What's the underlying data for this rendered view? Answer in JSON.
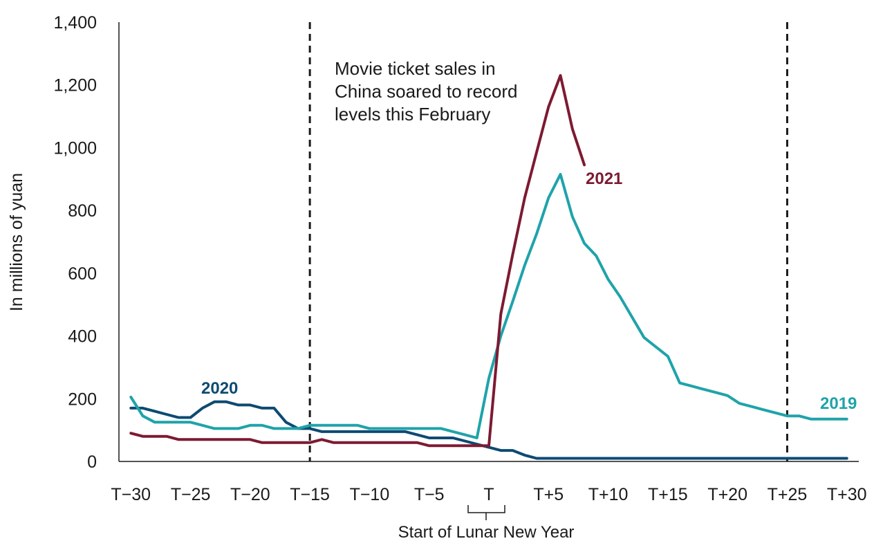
{
  "chart_data": {
    "type": "line",
    "ylabel": "In millions of yuan",
    "ylim": [
      0,
      1400
    ],
    "yticks": [
      0,
      200,
      400,
      600,
      800,
      1000,
      1200,
      1400
    ],
    "ytick_labels": [
      "0",
      "200",
      "400",
      "600",
      "800",
      "1,000",
      "1,200",
      "1,400"
    ],
    "xlim": [
      -31,
      31
    ],
    "xticks": [
      -30,
      -25,
      -20,
      -15,
      -10,
      -5,
      0,
      5,
      10,
      15,
      20,
      25,
      30
    ],
    "xtick_labels": [
      "T−30",
      "T−25",
      "T−20",
      "T−15",
      "T−10",
      "T−5",
      "T",
      "T+5",
      "T+10",
      "T+15",
      "T+20",
      "T+25",
      "T+30"
    ],
    "x_sublabel": "Start of Lunar New Year",
    "annotation": "Movie ticket sales in China soared to record levels this February",
    "vlines": [
      -15,
      25
    ],
    "grid": false,
    "legend": "direct labels",
    "series": [
      {
        "name": "2020",
        "color": "#0d4a72",
        "x": [
          -30,
          -29,
          -28,
          -27,
          -26,
          -25,
          -24,
          -23,
          -22,
          -21,
          -20,
          -19,
          -18,
          -17,
          -16,
          -15,
          -14,
          -13,
          -12,
          -11,
          -10,
          -9,
          -8,
          -7,
          -6,
          -5,
          -4,
          -3,
          -2,
          -1,
          0,
          1,
          2,
          3,
          4,
          5,
          6,
          7,
          8,
          9,
          10,
          11,
          12,
          13,
          14,
          15,
          16,
          17,
          18,
          19,
          20,
          21,
          22,
          23,
          24,
          25,
          26,
          27,
          28,
          29,
          30
        ],
        "values": [
          170,
          170,
          160,
          150,
          140,
          140,
          170,
          190,
          190,
          180,
          180,
          170,
          170,
          125,
          105,
          105,
          95,
          95,
          95,
          95,
          95,
          95,
          95,
          95,
          85,
          75,
          75,
          75,
          65,
          55,
          45,
          35,
          35,
          20,
          10,
          10,
          10,
          10,
          10,
          10,
          10,
          10,
          10,
          10,
          10,
          10,
          10,
          10,
          10,
          10,
          10,
          10,
          10,
          10,
          10,
          10,
          10,
          10,
          10,
          10,
          10
        ]
      },
      {
        "name": "2019",
        "color": "#1fa3aa",
        "x": [
          -30,
          -29,
          -28,
          -27,
          -26,
          -25,
          -24,
          -23,
          -22,
          -21,
          -20,
          -19,
          -18,
          -17,
          -16,
          -15,
          -14,
          -13,
          -12,
          -11,
          -10,
          -9,
          -8,
          -7,
          -6,
          -5,
          -4,
          -3,
          -2,
          -1,
          0,
          1,
          2,
          3,
          4,
          5,
          6,
          7,
          8,
          9,
          10,
          11,
          12,
          13,
          14,
          15,
          16,
          17,
          18,
          19,
          20,
          21,
          22,
          23,
          24,
          25,
          26,
          27,
          28,
          29,
          30
        ],
        "values": [
          205,
          145,
          125,
          125,
          125,
          125,
          115,
          105,
          105,
          105,
          115,
          115,
          105,
          105,
          105,
          115,
          115,
          115,
          115,
          115,
          105,
          105,
          105,
          105,
          105,
          105,
          105,
          95,
          85,
          75,
          265,
          400,
          510,
          625,
          725,
          840,
          915,
          780,
          695,
          655,
          580,
          525,
          460,
          395,
          365,
          335,
          250,
          240,
          230,
          220,
          210,
          185,
          175,
          165,
          155,
          145,
          145,
          135,
          135,
          135,
          135
        ]
      },
      {
        "name": "2021",
        "color": "#7d1a32",
        "x": [
          -30,
          -29,
          -28,
          -27,
          -26,
          -25,
          -24,
          -23,
          -22,
          -21,
          -20,
          -19,
          -18,
          -17,
          -16,
          -15,
          -14,
          -13,
          -12,
          -11,
          -10,
          -9,
          -8,
          -7,
          -6,
          -5,
          -4,
          -3,
          -2,
          -1,
          0,
          1,
          2,
          3,
          4,
          5,
          6,
          7,
          8
        ],
        "values": [
          90,
          80,
          80,
          80,
          70,
          70,
          70,
          70,
          70,
          70,
          70,
          60,
          60,
          60,
          60,
          60,
          70,
          60,
          60,
          60,
          60,
          60,
          60,
          60,
          60,
          50,
          50,
          50,
          50,
          50,
          50,
          470,
          660,
          840,
          985,
          1130,
          1230,
          1060,
          945
        ]
      }
    ]
  }
}
